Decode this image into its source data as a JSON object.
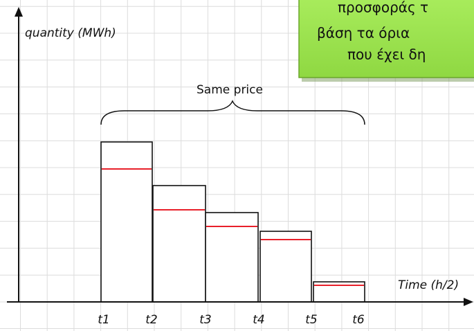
{
  "axes": {
    "y_label": "quantity (MWh)",
    "x_label": "Time (h/2)"
  },
  "time_labels": [
    "t1",
    "t2",
    "t3",
    "t4",
    "t5",
    "t6"
  ],
  "bracket_label": "Same price",
  "callout": {
    "lines": [
      "προσφοράς τ",
      "βάση τα όρια",
      "που έχει δη"
    ]
  }
}
